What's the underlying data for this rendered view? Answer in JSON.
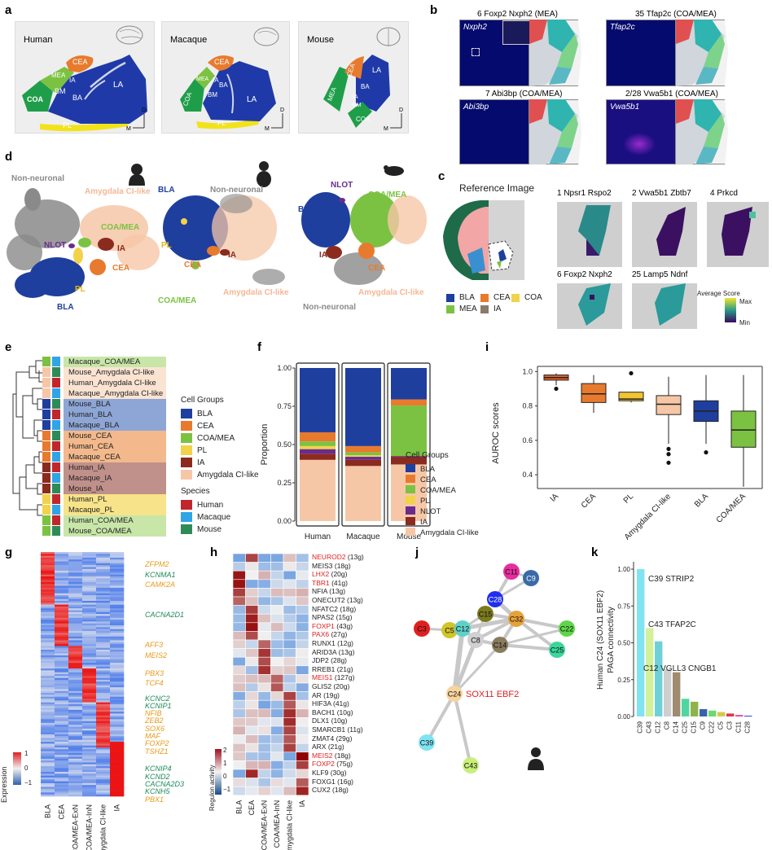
{
  "panels": [
    "a",
    "b",
    "c",
    "d",
    "e",
    "f",
    "g",
    "h",
    "i",
    "j",
    "k"
  ],
  "a": {
    "boxes": [
      {
        "title": "Human"
      },
      {
        "title": "Macaque"
      },
      {
        "title": "Mouse"
      }
    ],
    "regions": [
      "COA",
      "MEA",
      "CEA",
      "IA",
      "BM",
      "BA",
      "LA",
      "PL"
    ],
    "axis": {
      "d": "D",
      "m": "M"
    }
  },
  "b": {
    "titles": [
      "6 Foxp2 Nxph2 (MEA)",
      "35 Tfap2c (COA/MEA)",
      "7 Abi3bp (COA/MEA)",
      "2/28 Vwa5b1 (COA/MEA)"
    ],
    "genes": [
      "Nxph2",
      "Tfap2c",
      "Abi3bp",
      "Vwa5b1"
    ]
  },
  "c": {
    "ref_title": "Reference Image",
    "tiles": [
      "1 Npsr1 Rspo2",
      "2 Vwa5b1 Zbtb7",
      "4 Prkcd",
      "6 Foxp2 Nxph2",
      "25 Lamp5 Ndnf"
    ],
    "legend": [
      {
        "label": "BLA",
        "color": "#1f3f9e"
      },
      {
        "label": "CEA",
        "color": "#e87a2e"
      },
      {
        "label": "COA",
        "color": "#f2d24a"
      },
      {
        "label": "MEA",
        "color": "#7cc242"
      },
      {
        "label": "IA",
        "color": "#8a7a6a"
      }
    ],
    "score_title": "Average Score",
    "score_max": "Max",
    "score_min": "Min"
  },
  "d": {
    "human": {
      "nonneuronal": "Non-neuronal",
      "amyg": "Amygdala CI-like",
      "coamea": "COA/MEA",
      "nlot": "NLOT",
      "ia": "IA",
      "cea": "CEA",
      "pl": "PL",
      "bla": "BLA"
    },
    "macaque": {
      "bla": "BLA",
      "nonneuronal": "Non-neuronal",
      "pl": "PL",
      "cea": "CEA",
      "ia": "IA",
      "coamea": "COA/MEA",
      "amyg": "Amygdala CI-like"
    },
    "mouse": {
      "nlot": "NLOT",
      "coamea": "COA/MEA",
      "bla": "BLA",
      "ia": "IA",
      "cea": "CEA",
      "amyg": "Amygdala CI-like",
      "nonneuronal": "Non-neuronal"
    }
  },
  "e": {
    "rows": [
      {
        "label": "Macaque_COA/MEA",
        "group": "#7cc242",
        "species": "#2fa4e7",
        "bg": "#c8e6a8"
      },
      {
        "label": "Mouse_Amygdala CI-like",
        "group": "#f6c7a7",
        "species": "#2e8b57",
        "bg": "#fbe3d2"
      },
      {
        "label": "Human_Amygdala CI-like",
        "group": "#f6c7a7",
        "species": "#c0272d",
        "bg": "#fbe3d2"
      },
      {
        "label": "Macaque_Amygdala CI-like",
        "group": "#f6c7a7",
        "species": "#2fa4e7",
        "bg": "#fbe3d2"
      },
      {
        "label": "Mouse_BLA",
        "group": "#1f3f9e",
        "species": "#2e8b57",
        "bg": "#8ea6d6"
      },
      {
        "label": "Human_BLA",
        "group": "#1f3f9e",
        "species": "#c0272d",
        "bg": "#8ea6d6"
      },
      {
        "label": "Macaque_BLA",
        "group": "#1f3f9e",
        "species": "#2fa4e7",
        "bg": "#8ea6d6"
      },
      {
        "label": "Mouse_CEA",
        "group": "#e87a2e",
        "species": "#2e8b57",
        "bg": "#f3b98c"
      },
      {
        "label": "Human_CEA",
        "group": "#e87a2e",
        "species": "#c0272d",
        "bg": "#f3b98c"
      },
      {
        "label": "Macaque_CEA",
        "group": "#e87a2e",
        "species": "#2fa4e7",
        "bg": "#f3b98c"
      },
      {
        "label": "Human_IA",
        "group": "#8b2b1f",
        "species": "#c0272d",
        "bg": "#c0908a"
      },
      {
        "label": "Macaque_IA",
        "group": "#8b2b1f",
        "species": "#2fa4e7",
        "bg": "#c0908a"
      },
      {
        "label": "Mouse_IA",
        "group": "#8b2b1f",
        "species": "#2e8b57",
        "bg": "#c0908a"
      },
      {
        "label": "Human_PL",
        "group": "#f2d24a",
        "species": "#c0272d",
        "bg": "#f7e38a"
      },
      {
        "label": "Macaque_PL",
        "group": "#f2d24a",
        "species": "#2fa4e7",
        "bg": "#f7e38a"
      },
      {
        "label": "Human_COA/MEA",
        "group": "#7cc242",
        "species": "#c0272d",
        "bg": "#c8e6a8"
      },
      {
        "label": "Mouse_COA/MEA",
        "group": "#7cc242",
        "species": "#2e8b57",
        "bg": "#c8e6a8"
      }
    ],
    "legend_title": "Cell Groups",
    "legend": [
      {
        "label": "BLA",
        "color": "#1f3f9e"
      },
      {
        "label": "CEA",
        "color": "#e87a2e"
      },
      {
        "label": "COA/MEA",
        "color": "#7cc242"
      },
      {
        "label": "PL",
        "color": "#f2d24a"
      },
      {
        "label": "IA",
        "color": "#8b2b1f"
      },
      {
        "label": "Amygdala CI-like",
        "color": "#f6c7a7"
      }
    ],
    "species_title": "Species",
    "species": [
      {
        "label": "Human",
        "color": "#c0272d"
      },
      {
        "label": "Macaque",
        "color": "#2fa4e7"
      },
      {
        "label": "Mouse",
        "color": "#2e8b57"
      }
    ]
  },
  "chart_data": [
    {
      "panel": "f",
      "type": "bar",
      "stacked": true,
      "categories": [
        "Human",
        "Macaque",
        "Mouse"
      ],
      "ylabel": "Proportion",
      "ylim": [
        0,
        1
      ],
      "yticks": [
        "0.00",
        "0.25",
        "0.50",
        "0.75",
        "1.00"
      ],
      "legend_title": "Cell Groups",
      "series": [
        {
          "name": "Amygdala CI-like",
          "color": "#f6c7a7",
          "values": [
            0.4,
            0.36,
            0.37
          ]
        },
        {
          "name": "IA",
          "color": "#8b2b1f",
          "values": [
            0.04,
            0.04,
            0.05
          ]
        },
        {
          "name": "NLOT",
          "color": "#6a2b8f",
          "values": [
            0.03,
            0.02,
            0.005
          ]
        },
        {
          "name": "PL",
          "color": "#f2d24a",
          "values": [
            0.02,
            0.01,
            0.0
          ]
        },
        {
          "name": "COA/MEA",
          "color": "#7cc242",
          "values": [
            0.03,
            0.02,
            0.33
          ]
        },
        {
          "name": "CEA",
          "color": "#e87a2e",
          "values": [
            0.06,
            0.04,
            0.04
          ]
        },
        {
          "name": "BLA",
          "color": "#1f3f9e",
          "values": [
            0.42,
            0.51,
            0.205
          ]
        }
      ],
      "legend_order": [
        "BLA",
        "CEA",
        "COA/MEA",
        "PL",
        "NLOT",
        "IA",
        "Amygdala CI-like"
      ]
    },
    {
      "panel": "i",
      "type": "box",
      "categories": [
        "IA",
        "CEA",
        "PL",
        "Amygdala CI-like",
        "BLA",
        "COA/MEA"
      ],
      "colors": [
        "#e2622a",
        "#e87a2e",
        "#f2c530",
        "#f6c7a7",
        "#1f3f9e",
        "#7cc242"
      ],
      "ylabel": "AUROC scores",
      "ylim": [
        0.32,
        1.03
      ],
      "yticks": [
        "0.4",
        "0.6",
        "0.8",
        "1.0"
      ],
      "boxes": [
        {
          "min": 0.92,
          "q1": 0.95,
          "median": 0.965,
          "q3": 0.98,
          "max": 0.99,
          "outliers": [
            0.9
          ]
        },
        {
          "min": 0.76,
          "q1": 0.82,
          "median": 0.87,
          "q3": 0.93,
          "max": 0.98,
          "outliers": []
        },
        {
          "min": 0.82,
          "q1": 0.83,
          "median": 0.84,
          "q3": 0.88,
          "max": 0.88,
          "outliers": [
            0.99
          ]
        },
        {
          "min": 0.58,
          "q1": 0.75,
          "median": 0.81,
          "q3": 0.86,
          "max": 0.97,
          "outliers": [
            0.55,
            0.52,
            0.47
          ]
        },
        {
          "min": 0.58,
          "q1": 0.71,
          "median": 0.77,
          "q3": 0.83,
          "max": 0.98,
          "outliers": [
            0.53
          ]
        },
        {
          "min": 0.33,
          "q1": 0.56,
          "median": 0.66,
          "q3": 0.77,
          "max": 0.98,
          "outliers": []
        }
      ]
    },
    {
      "panel": "k",
      "type": "bar",
      "categories": [
        "C39",
        "C43",
        "C12",
        "C8",
        "C14",
        "C25",
        "C15",
        "C9",
        "C22",
        "C5",
        "C3",
        "C11",
        "C28"
      ],
      "values": [
        1.0,
        0.6,
        0.51,
        0.32,
        0.3,
        0.12,
        0.1,
        0.05,
        0.04,
        0.03,
        0.02,
        0.01,
        0.005
      ],
      "colors": [
        "#7fe3f2",
        "#d3f09a",
        "#6fd1d8",
        "#cfcfcf",
        "#a08a70",
        "#4fd6a0",
        "#8fb34a",
        "#3a62a8",
        "#6ed86e",
        "#d8c84a",
        "#e0354a",
        "#e040a0",
        "#2a3ae8"
      ],
      "ylabel": "Human C24 (SOX11 EBF2)\nPAGA connectivity",
      "ylim": [
        0,
        1.05
      ],
      "yticks": [
        "0.00",
        "0.25",
        "0.50",
        "0.75",
        "1.00"
      ],
      "annotations": [
        "C39 STRIP2",
        "C43 TFAP2C",
        "C12 VGLL3 CNGB1"
      ]
    }
  ],
  "f_labels": {
    "ylabel": "Proportion",
    "legend_title": "Cell Groups"
  },
  "i_labels": {
    "ylabel": "AUROC scores"
  },
  "k_labels": {
    "ylabel1": "Human C24 (SOX11 EBF2)",
    "ylabel2": "PAGA connectivity"
  },
  "g": {
    "columns": [
      "BLA",
      "CEA",
      "COA/MEA-ExN",
      "COA/MEA-InN",
      "Amygdala CI-like",
      "IA"
    ],
    "genes": [
      {
        "name": "ZFPM2",
        "color": "#e89a1a"
      },
      {
        "name": "KCNMA1",
        "color": "#1f8a5a"
      },
      {
        "name": "CAMK2A",
        "color": "#e89a1a"
      },
      {
        "name": "CACNA2D1",
        "color": "#1f8a5a"
      },
      {
        "name": "AFF3",
        "color": "#e89a1a"
      },
      {
        "name": "MEIS2",
        "color": "#e89a1a"
      },
      {
        "name": "PBX3",
        "color": "#e89a1a"
      },
      {
        "name": "TCF4",
        "color": "#e89a1a"
      },
      {
        "name": "KCNC2",
        "color": "#1f8a5a"
      },
      {
        "name": "KCNIP1",
        "color": "#1f8a5a"
      },
      {
        "name": "NFIB",
        "color": "#e89a1a"
      },
      {
        "name": "ZEB2",
        "color": "#e89a1a"
      },
      {
        "name": "SOX6",
        "color": "#e89a1a"
      },
      {
        "name": "MAF",
        "color": "#e89a1a"
      },
      {
        "name": "FOXP2",
        "color": "#e89a1a"
      },
      {
        "name": "TSHZ1",
        "color": "#e89a1a"
      },
      {
        "name": "KCNIP4",
        "color": "#1f8a5a"
      },
      {
        "name": "KCND2",
        "color": "#1f8a5a"
      },
      {
        "name": "CACNA2D3",
        "color": "#1f8a5a"
      },
      {
        "name": "KCNH5",
        "color": "#1f8a5a"
      },
      {
        "name": "PBX1",
        "color": "#e89a1a"
      }
    ],
    "legend_title": "Expression",
    "legend_ticks": [
      "1",
      "0",
      "−1"
    ]
  },
  "h": {
    "columns": [
      "BLA",
      "CEA",
      "COA/MEA-ExN",
      "COA/MEA-InN",
      "Amygdala CI-like",
      "IA"
    ],
    "regulons": [
      {
        "name": "NEUROD2",
        "count": "(13g)",
        "red": true
      },
      {
        "name": "MEIS3",
        "count": "(18g)",
        "red": false
      },
      {
        "name": "LHX2",
        "count": "(20g)",
        "red": true
      },
      {
        "name": "TBR1",
        "count": "(41g)",
        "red": true
      },
      {
        "name": "NFIA",
        "count": "(13g)",
        "red": false
      },
      {
        "name": "ONECUT2",
        "count": "(13g)",
        "red": false
      },
      {
        "name": "NFATC2",
        "count": "(18g)",
        "red": false
      },
      {
        "name": "NPAS2",
        "count": "(15g)",
        "red": false
      },
      {
        "name": "FOXP1",
        "count": "(43g)",
        "red": true
      },
      {
        "name": "PAX6",
        "count": "(27g)",
        "red": true
      },
      {
        "name": "RUNX1",
        "count": "(12g)",
        "red": false
      },
      {
        "name": "ARID3A",
        "count": "(13g)",
        "red": false
      },
      {
        "name": "JDP2",
        "count": "(28g)",
        "red": false
      },
      {
        "name": "RREB1",
        "count": "(21g)",
        "red": false
      },
      {
        "name": "MEIS1",
        "count": "(127g)",
        "red": true
      },
      {
        "name": "GLIS2",
        "count": "(20g)",
        "red": false
      },
      {
        "name": "AR",
        "count": "(19g)",
        "red": false
      },
      {
        "name": "HIF3A",
        "count": "(41g)",
        "red": false
      },
      {
        "name": "BACH1",
        "count": "(10g)",
        "red": false
      },
      {
        "name": "DLX1",
        "count": "(10g)",
        "red": false
      },
      {
        "name": "SMARCB1",
        "count": "(11g)",
        "red": false
      },
      {
        "name": "ZMAT4",
        "count": "(29g)",
        "red": false
      },
      {
        "name": "ARX",
        "count": "(21g)",
        "red": false
      },
      {
        "name": "MEIS2",
        "count": "(18g)",
        "red": true
      },
      {
        "name": "FOXP2",
        "count": "(75g)",
        "red": true
      },
      {
        "name": "KLF9",
        "count": "(30g)",
        "red": false
      },
      {
        "name": "FOXG1",
        "count": "(16g)",
        "red": false
      },
      {
        "name": "CUX2",
        "count": "(18g)",
        "red": false
      }
    ],
    "legend_title": "Regulon activity",
    "legend_ticks": [
      "2",
      "1",
      "0",
      "−1"
    ]
  },
  "j": {
    "nodes": [
      {
        "id": "C11",
        "color": "#e62e9e"
      },
      {
        "id": "C9",
        "color": "#3a6aa8"
      },
      {
        "id": "C28",
        "color": "#1f2ef0"
      },
      {
        "id": "C15",
        "color": "#7b7a1e"
      },
      {
        "id": "C32",
        "color": "#e6a23a"
      },
      {
        "id": "C22",
        "color": "#5fd64a"
      },
      {
        "id": "C3",
        "color": "#e02020"
      },
      {
        "id": "C5",
        "color": "#d2c42a"
      },
      {
        "id": "C12",
        "color": "#5fd1c8"
      },
      {
        "id": "C8",
        "color": "#d0d0d0"
      },
      {
        "id": "C14",
        "color": "#8a7a5e"
      },
      {
        "id": "C25",
        "color": "#3ad69a"
      },
      {
        "id": "C24",
        "color": "#f7d49e"
      },
      {
        "id": "C39",
        "color": "#7fe3f2"
      },
      {
        "id": "C43",
        "color": "#c9ef7a"
      }
    ],
    "highlight": "SOX11 EBF2"
  }
}
